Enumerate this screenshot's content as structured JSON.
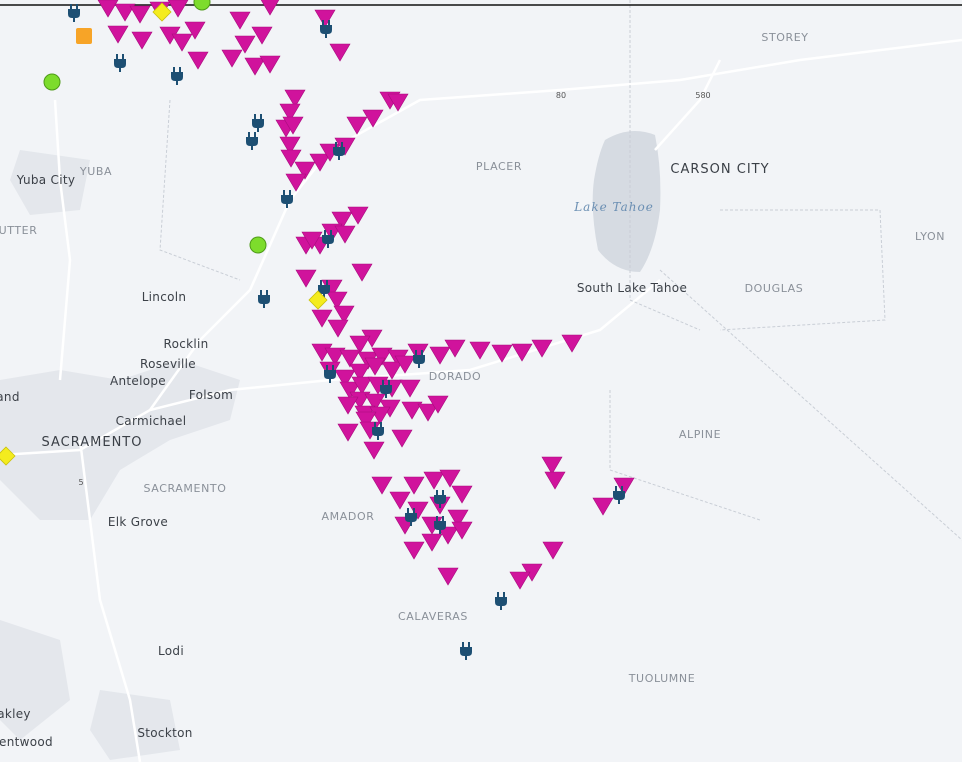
{
  "map": {
    "labels": [
      "STOREY",
      "80",
      "580",
      "CARSON CITY",
      "Yuba City",
      "YUBA",
      "PLACER",
      "Lake Tahoe",
      "LYON",
      "UTTER",
      "South Lake Tahoe",
      "DOUGLAS",
      "Lincoln",
      "Rocklin",
      "Roseville",
      "Antelope",
      "Folsom",
      "and",
      "Carmichael",
      "SACRAMENTO",
      "SACRAMENTO",
      "5",
      "Elk Grove",
      "AMADOR",
      "ALPINE",
      "CALAVERAS",
      "Lodi",
      "TUOLUMNE",
      "akley",
      "Stockton",
      "entwood",
      "DORADO"
    ]
  }
}
